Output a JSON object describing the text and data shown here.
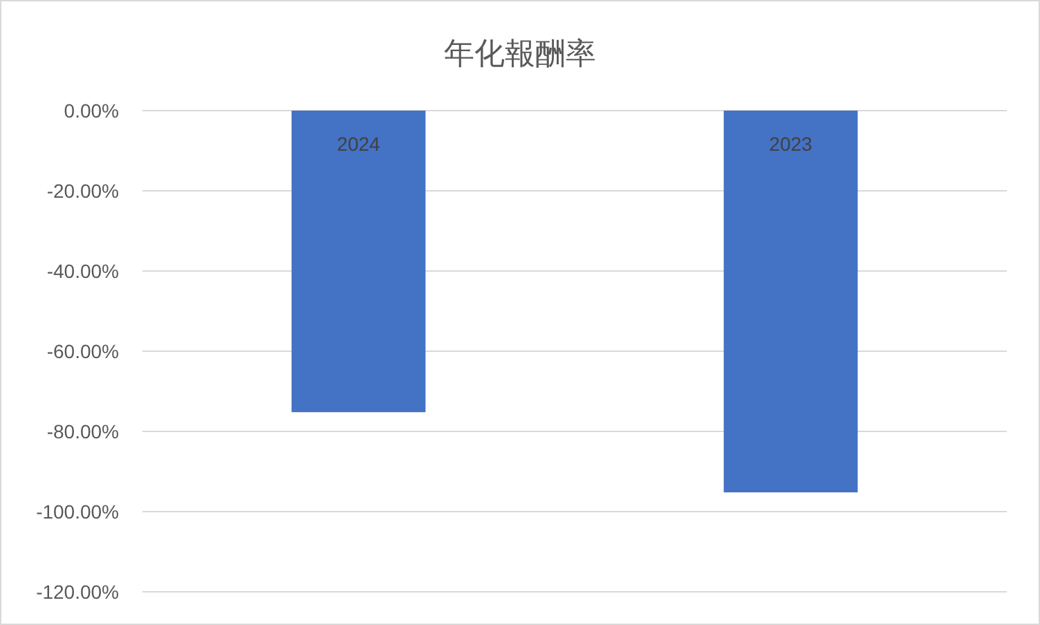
{
  "chart_data": {
    "type": "bar",
    "title": "年化報酬率",
    "categories": [
      "2024",
      "2023"
    ],
    "values": [
      -75.2,
      -95.2
    ],
    "color": "#4472c4",
    "ylim": [
      -120,
      0
    ],
    "yticks": [
      {
        "value": 0,
        "label": "0.00%"
      },
      {
        "value": -20,
        "label": "-20.00%"
      },
      {
        "value": -40,
        "label": "-40.00%"
      },
      {
        "value": -60,
        "label": "-60.00%"
      },
      {
        "value": -80,
        "label": "-80.00%"
      },
      {
        "value": -100,
        "label": "-100.00%"
      },
      {
        "value": -120,
        "label": "-120.00%"
      }
    ],
    "grid": true
  }
}
